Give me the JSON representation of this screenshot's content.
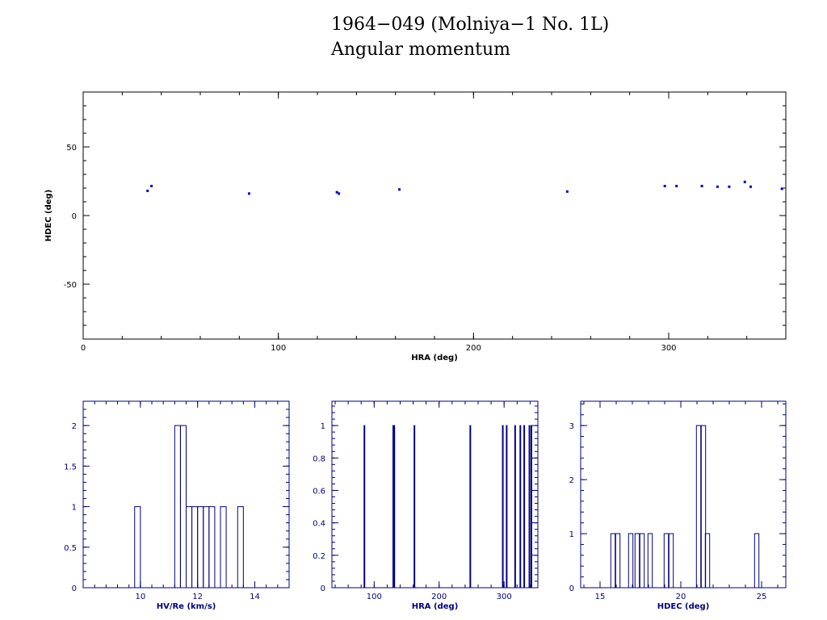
{
  "title": {
    "line1": "1964−049 (Molniya−1 No. 1L)",
    "line2": "Angular momentum"
  },
  "colors": {
    "main_axes": "#000000",
    "hist_axes": "#000080",
    "points": "#0000cc",
    "bars": "#000080"
  },
  "chart_data": [
    {
      "type": "scatter",
      "xlabel": "HRA (deg)",
      "ylabel": "HDEC (deg)",
      "xlim": [
        0,
        360
      ],
      "ylim": [
        -90,
        90
      ],
      "x_ticks": [
        0,
        100,
        200,
        300
      ],
      "y_ticks": [
        -50,
        0,
        50
      ],
      "points": [
        {
          "x": 33,
          "y": 18
        },
        {
          "x": 35,
          "y": 21.5
        },
        {
          "x": 85,
          "y": 16
        },
        {
          "x": 130,
          "y": 17
        },
        {
          "x": 131,
          "y": 16
        },
        {
          "x": 162,
          "y": 19
        },
        {
          "x": 248,
          "y": 17.5
        },
        {
          "x": 298,
          "y": 21.5
        },
        {
          "x": 304,
          "y": 21.5
        },
        {
          "x": 317,
          "y": 21.5
        },
        {
          "x": 325,
          "y": 21
        },
        {
          "x": 331,
          "y": 21
        },
        {
          "x": 339,
          "y": 24.5
        },
        {
          "x": 342,
          "y": 21
        },
        {
          "x": 358,
          "y": 19.5
        }
      ]
    },
    {
      "type": "bar",
      "xlabel": "HV/Re (km/s)",
      "xlim": [
        8,
        15.2
      ],
      "ylim": [
        0,
        2.3
      ],
      "x_ticks": [
        10,
        12,
        14
      ],
      "y_ticks": [
        0,
        0.5,
        1,
        1.5,
        2
      ],
      "y_tick_labels": [
        "0",
        "0.5",
        "1",
        "1.5",
        "2"
      ],
      "bin_width": 0.2,
      "bins": [
        {
          "x": 9.9,
          "count": 1
        },
        {
          "x": 11.3,
          "count": 2
        },
        {
          "x": 11.5,
          "count": 2
        },
        {
          "x": 11.7,
          "count": 1
        },
        {
          "x": 11.9,
          "count": 1
        },
        {
          "x": 12.1,
          "count": 1
        },
        {
          "x": 12.3,
          "count": 1
        },
        {
          "x": 12.5,
          "count": 1
        },
        {
          "x": 12.9,
          "count": 1
        },
        {
          "x": 13.5,
          "count": 1
        }
      ]
    },
    {
      "type": "bar",
      "xlabel": "HRA (deg)",
      "xlim": [
        35,
        352
      ],
      "ylim": [
        0,
        1.15
      ],
      "x_ticks": [
        100,
        200,
        300
      ],
      "y_ticks": [
        0,
        0.2,
        0.4,
        0.6,
        0.8,
        1
      ],
      "y_tick_labels": [
        "0",
        "0.2",
        "0.4",
        "0.6",
        "0.8",
        "1"
      ],
      "bin_width": 1.2,
      "bins": [
        {
          "x": 85,
          "count": 1
        },
        {
          "x": 129.5,
          "count": 1
        },
        {
          "x": 131,
          "count": 1
        },
        {
          "x": 162,
          "count": 1
        },
        {
          "x": 248,
          "count": 1
        },
        {
          "x": 298,
          "count": 1
        },
        {
          "x": 304,
          "count": 1
        },
        {
          "x": 317,
          "count": 1
        },
        {
          "x": 325,
          "count": 1
        },
        {
          "x": 331,
          "count": 1
        },
        {
          "x": 339,
          "count": 1
        },
        {
          "x": 342,
          "count": 1
        }
      ]
    },
    {
      "type": "bar",
      "xlabel": "HDEC (deg)",
      "xlim": [
        13.8,
        26.5
      ],
      "ylim": [
        0,
        3.45
      ],
      "x_ticks": [
        15,
        20,
        25
      ],
      "y_ticks": [
        0,
        1,
        2,
        3
      ],
      "y_tick_labels": [
        "0",
        "1",
        "2",
        "3"
      ],
      "bin_width": 0.27,
      "bins": [
        {
          "x": 15.8,
          "count": 1
        },
        {
          "x": 16.1,
          "count": 1
        },
        {
          "x": 16.9,
          "count": 1
        },
        {
          "x": 17.3,
          "count": 1
        },
        {
          "x": 17.6,
          "count": 1
        },
        {
          "x": 18.1,
          "count": 1
        },
        {
          "x": 19.1,
          "count": 1
        },
        {
          "x": 19.4,
          "count": 1
        },
        {
          "x": 21.1,
          "count": 3
        },
        {
          "x": 21.4,
          "count": 3
        },
        {
          "x": 21.65,
          "count": 1
        },
        {
          "x": 24.7,
          "count": 1
        }
      ]
    }
  ]
}
